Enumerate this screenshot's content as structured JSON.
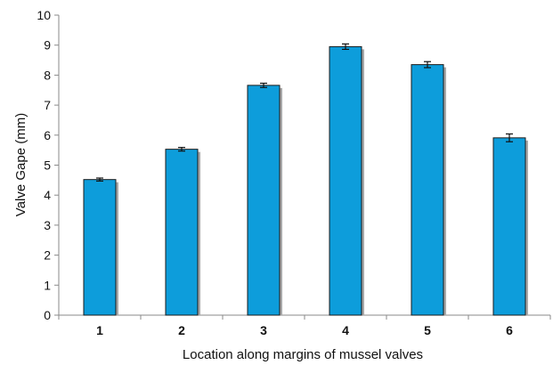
{
  "chart_data": {
    "type": "bar",
    "title": "",
    "xlabel": "Location along margins of mussel valves",
    "ylabel": "Valve Gape (mm)",
    "categories": [
      "1",
      "2",
      "3",
      "4",
      "5",
      "6"
    ],
    "values": [
      4.52,
      5.53,
      7.66,
      8.95,
      8.35,
      5.91
    ],
    "errors": [
      0.05,
      0.06,
      0.07,
      0.09,
      0.1,
      0.13
    ],
    "ylim": [
      0,
      10
    ],
    "yticks": [
      "0",
      "1",
      "2",
      "3",
      "4",
      "5",
      "6",
      "7",
      "8",
      "9",
      "10"
    ],
    "grid": false,
    "bar_color": "#0d9ddb",
    "bar_shadow_color": "#a9a9a9",
    "axis_color": "#8a8a8a"
  }
}
